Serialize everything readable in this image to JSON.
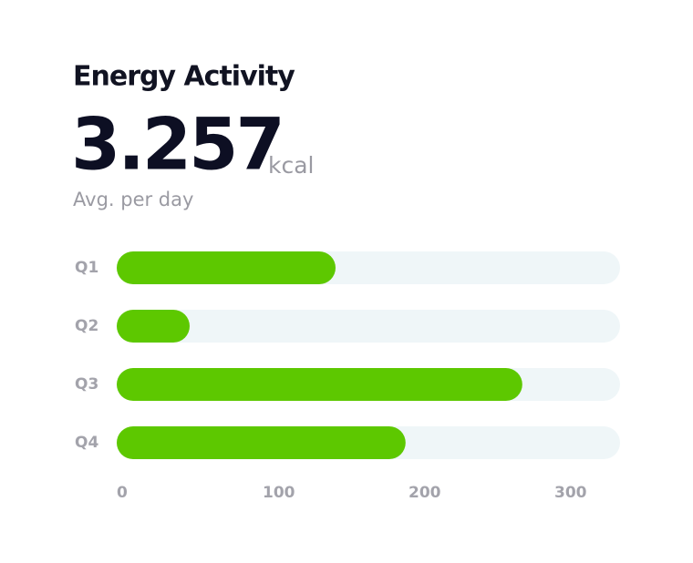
{
  "chart_data": {
    "type": "barh",
    "title": "Energy Activity",
    "headline": "3.257",
    "unit": "kcal",
    "subtitle": "Avg. per day",
    "categories": [
      "Q1",
      "Q2",
      "Q3",
      "Q4"
    ],
    "values": [
      150,
      50,
      278,
      198
    ],
    "color": "#5dc800",
    "track_color": "#eff6f8",
    "xlim": [
      0,
      345
    ],
    "xticks": [
      0,
      100,
      200,
      300
    ]
  }
}
